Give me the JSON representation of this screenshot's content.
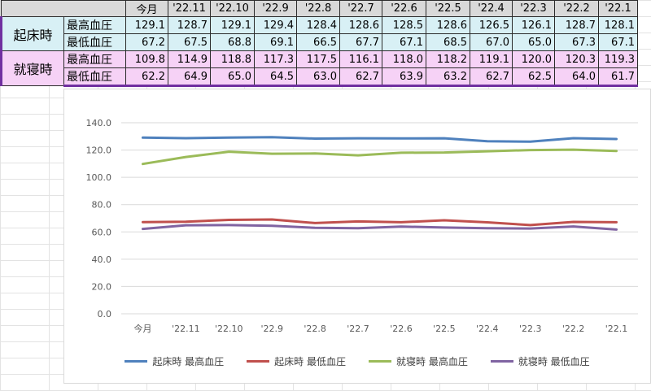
{
  "table": {
    "header": [
      "今月",
      "'22.11",
      "'22.10",
      "'22.9",
      "'22.8",
      "'22.7",
      "'22.6",
      "'22.5",
      "'22.4",
      "'22.3",
      "'22.2",
      "'22.1"
    ],
    "groups": [
      {
        "label": "起床時",
        "rows": [
          {
            "label": "最高血圧",
            "values": [
              "129.1",
              "128.7",
              "129.1",
              "129.4",
              "128.4",
              "128.6",
              "128.5",
              "128.6",
              "126.5",
              "126.1",
              "128.7",
              "128.1"
            ]
          },
          {
            "label": "最低血圧",
            "values": [
              "67.2",
              "67.5",
              "68.8",
              "69.1",
              "66.5",
              "67.7",
              "67.1",
              "68.5",
              "67.0",
              "65.0",
              "67.3",
              "67.1"
            ]
          }
        ]
      },
      {
        "label": "就寝時",
        "rows": [
          {
            "label": "最高血圧",
            "values": [
              "109.8",
              "114.9",
              "118.8",
              "117.3",
              "117.5",
              "116.1",
              "118.0",
              "118.2",
              "119.1",
              "120.0",
              "120.3",
              "119.3"
            ]
          },
          {
            "label": "最低血圧",
            "values": [
              "62.2",
              "64.9",
              "65.0",
              "64.5",
              "63.0",
              "62.7",
              "63.9",
              "63.2",
              "62.7",
              "62.5",
              "64.0",
              "61.7"
            ]
          }
        ]
      }
    ]
  },
  "chart_data": {
    "type": "line",
    "categories": [
      "今月",
      "'22.11",
      "'22.10",
      "'22.9",
      "'22.8",
      "'22.7",
      "'22.6",
      "'22.5",
      "'22.4",
      "'22.3",
      "'22.2",
      "'22.1"
    ],
    "ylim": [
      0,
      140
    ],
    "yticks": [
      "0.0",
      "20.0",
      "40.0",
      "60.0",
      "80.0",
      "100.0",
      "120.0",
      "140.0"
    ],
    "grid": true,
    "legend_position": "bottom",
    "series": [
      {
        "name": "起床時 最高血圧",
        "color": "#4f81bd",
        "values": [
          129.1,
          128.7,
          129.1,
          129.4,
          128.4,
          128.6,
          128.5,
          128.6,
          126.5,
          126.1,
          128.7,
          128.1
        ]
      },
      {
        "name": "起床時 最低血圧",
        "color": "#c0504d",
        "values": [
          67.2,
          67.5,
          68.8,
          69.1,
          66.5,
          67.7,
          67.1,
          68.5,
          67.0,
          65.0,
          67.3,
          67.1
        ]
      },
      {
        "name": "就寝時 最高血圧",
        "color": "#9bbb59",
        "values": [
          109.8,
          114.9,
          118.8,
          117.3,
          117.5,
          116.1,
          118.0,
          118.2,
          119.1,
          120.0,
          120.3,
          119.3
        ]
      },
      {
        "name": "就寝時 最低血圧",
        "color": "#8064a2",
        "values": [
          62.2,
          64.9,
          65.0,
          64.5,
          63.0,
          62.7,
          63.9,
          63.2,
          62.7,
          62.5,
          64.0,
          61.7
        ]
      }
    ]
  }
}
